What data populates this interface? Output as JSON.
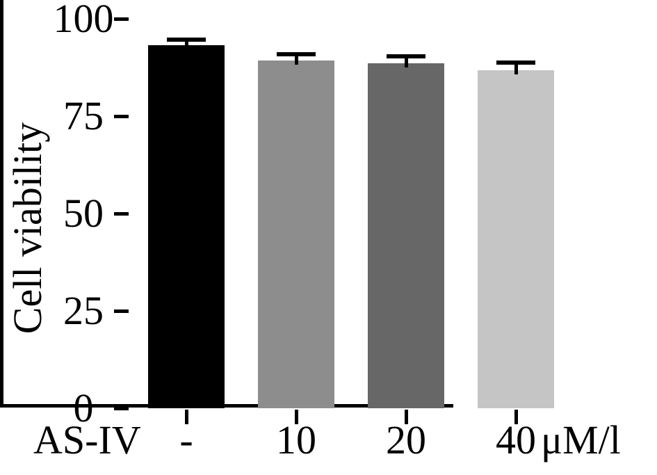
{
  "figure": {
    "background": "#ffffff",
    "text_color": "#000000",
    "axis_color": "#000000"
  },
  "chart_data": {
    "type": "bar",
    "title": "",
    "ylabel": "Cell viability",
    "xlabel_prefix": "AS-IV",
    "x_unit": "μM/l",
    "categories": [
      "-",
      "10",
      "20",
      "40"
    ],
    "values": [
      93.3,
      89.2,
      88.5,
      86.7
    ],
    "errors": [
      1.3,
      1.7,
      1.8,
      2.0
    ],
    "error_style": "sd-upper-cap",
    "bar_colors": [
      "#000000",
      "#8d8d8d",
      "#676767",
      "#c5c5c5"
    ],
    "ylim": [
      0,
      100
    ],
    "yticks": [
      0,
      25,
      50,
      75,
      100
    ],
    "grid": false,
    "legend": "none"
  }
}
